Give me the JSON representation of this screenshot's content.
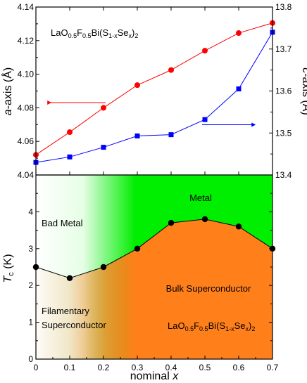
{
  "chart_data": [
    {
      "type": "line",
      "panel": "top",
      "annotation": {
        "prefix": "LaO",
        "s1": "0.5",
        "mid": "F",
        "s2": "0.5",
        "mid2": "Bi(S",
        "s3": "1-x",
        "mid3": "Se",
        "s4": "x",
        "suffix": ")",
        "s5": "2"
      },
      "x": [
        0,
        0.1,
        0.2,
        0.3,
        0.4,
        0.5,
        0.6,
        0.7
      ],
      "xlim": [
        0,
        0.7
      ],
      "left_axis": {
        "label_italic": "a",
        "label_rest": "-axis (Å)",
        "ylim": [
          4.04,
          4.14
        ],
        "ticks": [
          "4.04",
          "4.06",
          "4.08",
          "4.10",
          "4.12",
          "4.14"
        ]
      },
      "right_axis": {
        "label_italic": "c",
        "label_rest": "-axis (Å)",
        "ylim": [
          13.4,
          13.8
        ],
        "ticks": [
          "13.4",
          "13.5",
          "13.6",
          "13.7",
          "13.8"
        ]
      },
      "series": [
        {
          "axis": "left",
          "marker": "circle",
          "color": "#ff0000",
          "values": [
            4.052,
            4.0655,
            4.08,
            4.0935,
            4.1025,
            4.114,
            4.1245,
            4.1305
          ]
        },
        {
          "axis": "right",
          "marker": "square",
          "color": "#0000ff",
          "values": [
            13.43,
            13.443,
            13.466,
            13.493,
            13.496,
            13.532,
            13.605,
            13.74
          ]
        }
      ]
    },
    {
      "type": "line",
      "panel": "bottom",
      "x": [
        0,
        0.1,
        0.2,
        0.3,
        0.4,
        0.5,
        0.6,
        0.7
      ],
      "values": [
        2.5,
        2.2,
        2.5,
        3.0,
        3.7,
        3.8,
        3.6,
        3.0
      ],
      "ylim": [
        0,
        5
      ],
      "yticks": [
        "0",
        "1",
        "2",
        "3",
        "4"
      ],
      "xticks": [
        "0",
        "0.1",
        "0.2",
        "0.3",
        "0.4",
        "0.5",
        "0.6",
        "0.7"
      ],
      "xlabel_prefix": "nominal ",
      "xlabel_var": "x",
      "ylabel_var": "T",
      "ylabel_sub": "c",
      "ylabel_rest": " (K)",
      "colors": {
        "metal": "#00ee00",
        "superconductor": "#ff7f1a",
        "line": "#000000"
      },
      "regions": {
        "metal": "Metal",
        "bad_metal": "Bad Metal",
        "bulk": "Bulk Superconductor",
        "filamentary_1": "Filamentary",
        "filamentary_2": "Superconductor"
      },
      "annotation": {
        "prefix": "LaO",
        "s1": "0.5",
        "mid": "F",
        "s2": "0.5",
        "mid2": "Bi(S",
        "s3": "1-x",
        "mid3": "Se",
        "s4": "x",
        "suffix": ")",
        "s5": "2"
      }
    }
  ]
}
